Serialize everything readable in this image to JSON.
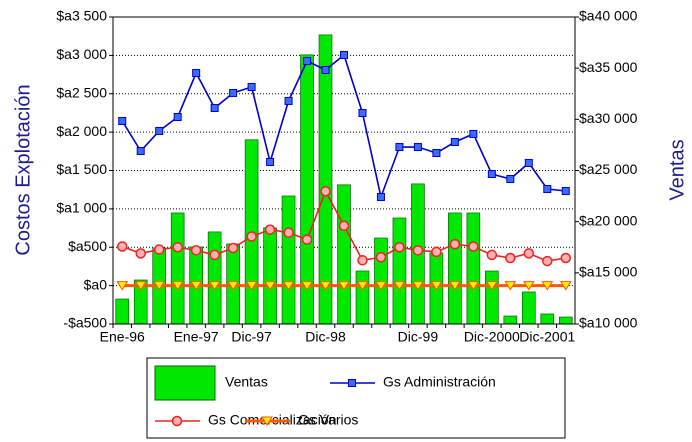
{
  "chart_data": {
    "type": "bar-line",
    "y_label": "Costos Explotación",
    "y2_label": "Ventas",
    "categories": [
      "Ene-96",
      null,
      null,
      null,
      "Ene-97",
      null,
      null,
      "Dic-97",
      null,
      null,
      null,
      "Dic-98",
      null,
      null,
      null,
      null,
      "Dic-99",
      null,
      null,
      null,
      "Dic-2000",
      null,
      null,
      "Dic-2001",
      null
    ],
    "ylim": [
      -500,
      3500
    ],
    "yticks": [
      {
        "value": -500,
        "label": "-$a500"
      },
      {
        "value": 0,
        "label": "$a0"
      },
      {
        "value": 500,
        "label": "$a500"
      },
      {
        "value": 1000,
        "label": "$a1 000"
      },
      {
        "value": 1500,
        "label": "$a1 500"
      },
      {
        "value": 2000,
        "label": "$a2 000"
      },
      {
        "value": 2500,
        "label": "$a2 500"
      },
      {
        "value": 3000,
        "label": "$a3 000"
      },
      {
        "value": 3500,
        "label": "$a3 500"
      }
    ],
    "y2lim": [
      10000,
      40000
    ],
    "y2ticks": [
      {
        "value": 10000,
        "label": "$a10 000"
      },
      {
        "value": 15000,
        "label": "$a15 000"
      },
      {
        "value": 20000,
        "label": "$a20 000"
      },
      {
        "value": 25000,
        "label": "$a25 000"
      },
      {
        "value": 30000,
        "label": "$a30 000"
      },
      {
        "value": 35000,
        "label": "$a35 000"
      },
      {
        "value": 40000,
        "label": "$a40 000"
      }
    ],
    "grid": true,
    "series": [
      {
        "name": "Ventas",
        "type": "bar",
        "axis": "y2",
        "color": "#00e800",
        "values": [
          12440,
          14300,
          17430,
          20850,
          17530,
          19000,
          17820,
          28000,
          19390,
          22510,
          36300,
          38250,
          23600,
          15180,
          18400,
          20360,
          23690,
          16940,
          20850,
          20850,
          15180,
          10780,
          13130,
          10980,
          10680
        ]
      },
      {
        "name": "Gs Administración",
        "type": "line",
        "axis": "y",
        "color": "#0000cc",
        "marker": "square",
        "values": [
          2145,
          1754,
          2015,
          2197,
          2770,
          2314,
          2510,
          2588,
          1611,
          2406,
          2927,
          2810,
          3005,
          2249,
          1155,
          1806,
          1806,
          1728,
          1871,
          1976,
          1454,
          1389,
          1598,
          1259,
          1233
        ]
      },
      {
        "name": "Gs Comercialización",
        "type": "line",
        "axis": "y",
        "color": "#ee2222",
        "marker": "circle",
        "values": [
          510,
          420,
          470,
          500,
          460,
          400,
          490,
          640,
          730,
          690,
          600,
          1230,
          780,
          330,
          370,
          500,
          460,
          440,
          540,
          510,
          400,
          360,
          420,
          320,
          360
        ]
      },
      {
        "name": "Gs Varios",
        "type": "line",
        "axis": "y",
        "color": "#ff5a00",
        "marker": "triangle-down",
        "values": [
          0,
          0,
          0,
          0,
          0,
          0,
          0,
          0,
          0,
          0,
          0,
          0,
          0,
          0,
          0,
          0,
          0,
          0,
          0,
          0,
          0,
          0,
          0,
          0,
          0
        ]
      }
    ]
  }
}
